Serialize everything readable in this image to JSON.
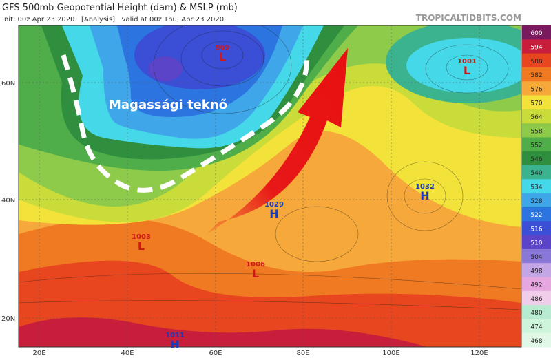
{
  "header": {
    "title": "GFS 500mb Geopotential Height (dam) & MSLP (mb)",
    "subtitle": "Init: 00z Apr 23 2020   [Analysis]   valid at 00z Thu, Apr 23 2020",
    "source": "TROPICALTIDBITS.COM"
  },
  "map": {
    "annotation": "Magassági teknő",
    "latitudes": [
      "60N",
      "40N",
      "20N"
    ],
    "longitudes": [
      "20E",
      "40E",
      "60E",
      "80E",
      "100E",
      "120E"
    ],
    "pressure_centers": [
      {
        "letter": "L",
        "value": "969"
      },
      {
        "letter": "L",
        "value": "1001"
      },
      {
        "letter": "H",
        "value": "1032"
      },
      {
        "letter": "H",
        "value": "1029"
      },
      {
        "letter": "L",
        "value": "1003"
      },
      {
        "letter": "L",
        "value": "1006"
      },
      {
        "letter": "H",
        "value": "1011"
      }
    ]
  },
  "colorbar": {
    "labels": [
      "600",
      "594",
      "588",
      "582",
      "576",
      "570",
      "564",
      "558",
      "552",
      "546",
      "540",
      "534",
      "528",
      "522",
      "516",
      "510",
      "504",
      "498",
      "492",
      "486",
      "480",
      "474",
      "468"
    ],
    "colors": [
      "#7a1a5e",
      "#c81e3c",
      "#e8461e",
      "#f07a22",
      "#f6a93a",
      "#f2e23a",
      "#c9dc3a",
      "#8fcb4a",
      "#4fae4a",
      "#2f8f3e",
      "#3bb38f",
      "#45d8e8",
      "#3fa6ea",
      "#2c74e0",
      "#3a4ed6",
      "#5b44c8",
      "#8a78d8",
      "#c4a6e6",
      "#e6a6e0",
      "#f0cde8",
      "#b8ecd0",
      "#cff4dc",
      "#e2f8e6"
    ]
  }
}
